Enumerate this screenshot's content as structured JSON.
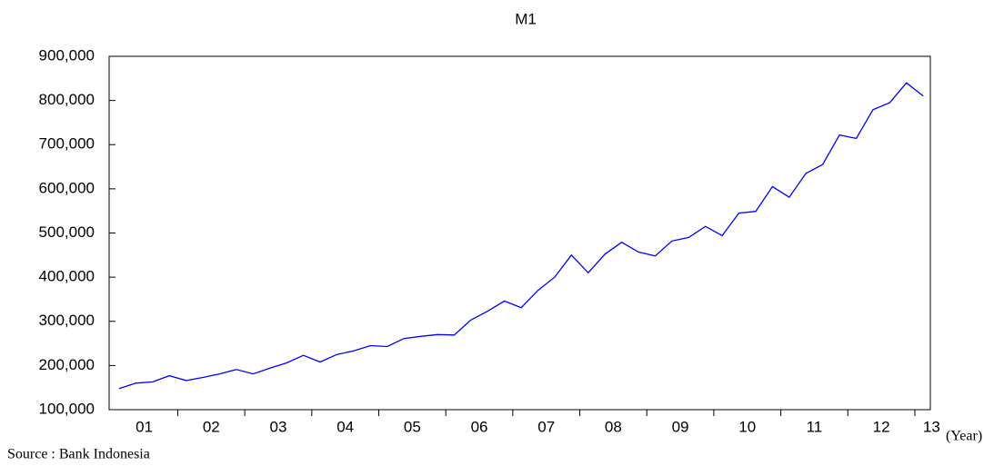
{
  "chart_data": {
    "type": "line",
    "title": "M1",
    "categories": [
      null,
      "01",
      null,
      null,
      null,
      "02",
      null,
      null,
      null,
      "03",
      null,
      null,
      null,
      "04",
      null,
      null,
      null,
      "05",
      null,
      null,
      null,
      "06",
      null,
      null,
      null,
      "07",
      null,
      null,
      null,
      "08",
      null,
      null,
      null,
      "09",
      null,
      null,
      null,
      "10",
      null,
      null,
      null,
      "11",
      null,
      null,
      null,
      "12",
      null,
      null,
      "13"
    ],
    "values": [
      148000,
      160000,
      163000,
      177000,
      166000,
      173000,
      181000,
      191000,
      181000,
      194000,
      206000,
      223000,
      208000,
      225000,
      233000,
      245000,
      243000,
      261000,
      266000,
      270000,
      269000,
      303000,
      323000,
      346000,
      331000,
      370000,
      400000,
      450000,
      410000,
      452000,
      479000,
      457000,
      448000,
      482000,
      490000,
      515000,
      494000,
      545000,
      549000,
      605000,
      581000,
      635000,
      655000,
      722000,
      714000,
      779000,
      795000,
      840000,
      810000
    ],
    "color": "#0000ff",
    "ylim": [
      100000,
      900000
    ],
    "yticks": [
      {
        "value": 100000,
        "label": "100,000"
      },
      {
        "value": 200000,
        "label": "200,000"
      },
      {
        "value": 300000,
        "label": "300,000"
      },
      {
        "value": 400000,
        "label": "400,000"
      },
      {
        "value": 500000,
        "label": "500,000"
      },
      {
        "value": 600000,
        "label": "600,000"
      },
      {
        "value": 700000,
        "label": "700,000"
      },
      {
        "value": 800000,
        "label": "800,000"
      },
      {
        "value": 900000,
        "label": "900,000"
      }
    ],
    "grid": false,
    "x_label": "(Year)",
    "source": "Source : Bank Indonesia"
  }
}
